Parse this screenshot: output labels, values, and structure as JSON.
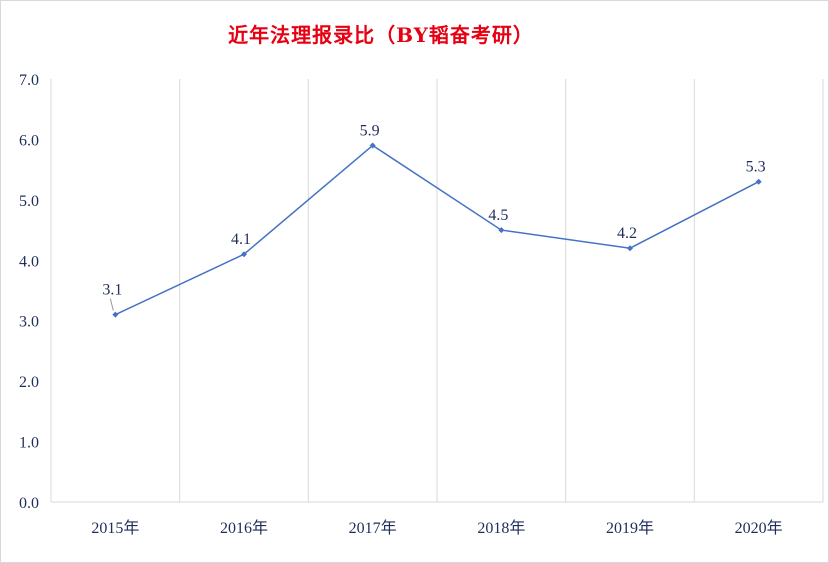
{
  "chart_data": {
    "type": "line",
    "title": "近年法理报录比（BY韬奋考研）",
    "categories": [
      "2015年",
      "2016年",
      "2017年",
      "2018年",
      "2019年",
      "2020年"
    ],
    "values": [
      3.1,
      4.1,
      5.9,
      4.5,
      4.2,
      5.3
    ],
    "value_labels": [
      "3.1",
      "4.1",
      "5.9",
      "4.5",
      "4.2",
      "5.3"
    ],
    "xlabel": "",
    "ylabel": "",
    "ylim": [
      0,
      7
    ],
    "yticks": [
      "0.0",
      "1.0",
      "2.0",
      "3.0",
      "4.0",
      "5.0",
      "6.0",
      "7.0"
    ],
    "grid": "vertical",
    "legend": "none",
    "colors": {
      "line": "#4472c4",
      "title": "#e60012",
      "grid": "#d9d9d9",
      "text": "#1f2d5a"
    }
  }
}
